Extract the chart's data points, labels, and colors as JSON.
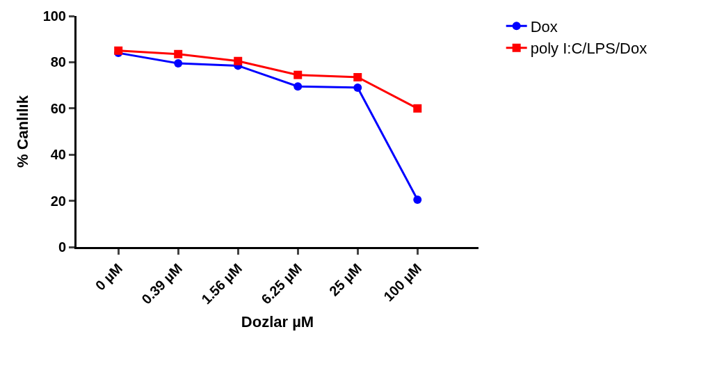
{
  "chart_data": {
    "type": "line",
    "xlabel": "Dozlar µM",
    "ylabel": "% Canlılık",
    "categories": [
      "0 µM",
      "0.39 µM",
      "1.56 µM",
      "6.25 µM",
      "25 µM",
      "100 µM"
    ],
    "series": [
      {
        "name": "Dox",
        "color": "#0000ff",
        "marker": "circle",
        "values": [
          84,
          79.5,
          78.5,
          69.5,
          69,
          20.5
        ]
      },
      {
        "name": "poly I:C/LPS/Dox",
        "color": "#ff0000",
        "marker": "square",
        "values": [
          85,
          83.5,
          80.5,
          74.5,
          73.5,
          60
        ]
      }
    ],
    "ylim": [
      0,
      100
    ],
    "yticks": [
      0,
      20,
      40,
      60,
      80,
      100
    ],
    "legend": "top right",
    "line_style": "solid"
  }
}
